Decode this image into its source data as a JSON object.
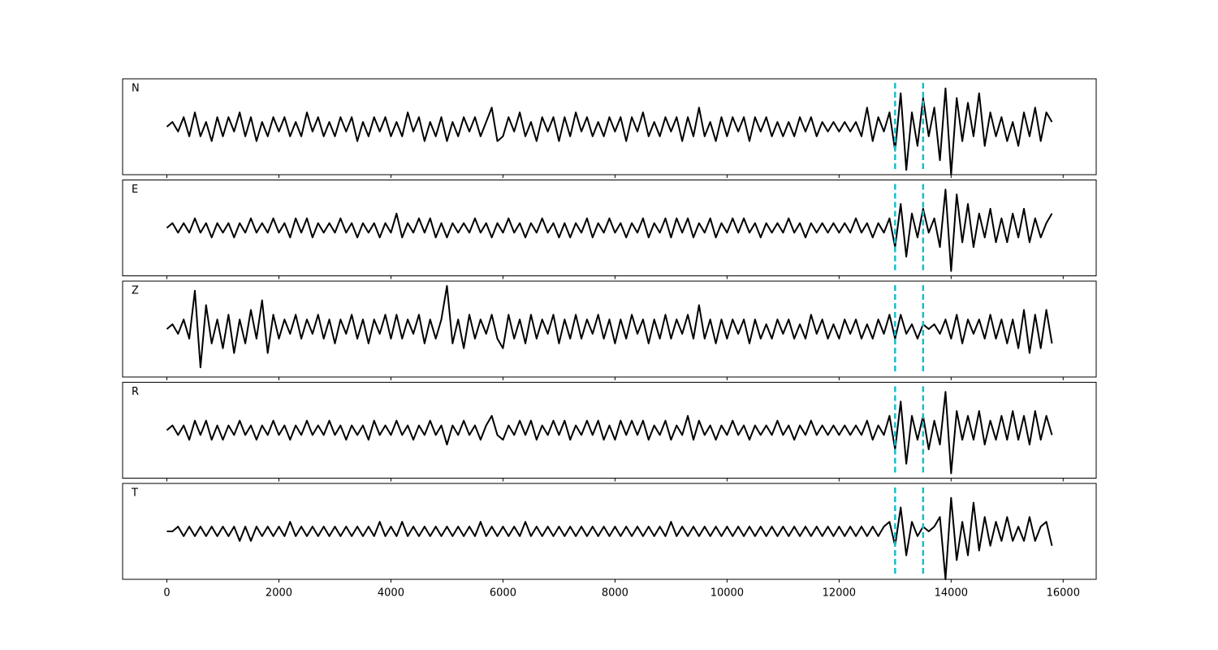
{
  "chart_data": {
    "type": "line",
    "x": [
      0,
      100,
      200,
      300,
      400,
      500,
      600,
      700,
      800,
      900,
      1000,
      1100,
      1200,
      1300,
      1400,
      1500,
      1600,
      1700,
      1800,
      1900,
      2000,
      2100,
      2200,
      2300,
      2400,
      2500,
      2600,
      2700,
      2800,
      2900,
      3000,
      3100,
      3200,
      3300,
      3400,
      3500,
      3600,
      3700,
      3800,
      3900,
      4000,
      4100,
      4200,
      4300,
      4400,
      4500,
      4600,
      4700,
      4800,
      4900,
      5000,
      5100,
      5200,
      5300,
      5400,
      5500,
      5600,
      5700,
      5800,
      5900,
      6000,
      6100,
      6200,
      6300,
      6400,
      6500,
      6600,
      6700,
      6800,
      6900,
      7000,
      7100,
      7200,
      7300,
      7400,
      7500,
      7600,
      7700,
      7800,
      7900,
      8000,
      8100,
      8200,
      8300,
      8400,
      8500,
      8600,
      8700,
      8800,
      8900,
      9000,
      9100,
      9200,
      9300,
      9400,
      9500,
      9600,
      9700,
      9800,
      9900,
      10000,
      10100,
      10200,
      10300,
      10400,
      10500,
      10600,
      10700,
      10800,
      10900,
      11000,
      11100,
      11200,
      11300,
      11400,
      11500,
      11600,
      11700,
      11800,
      11900,
      12000,
      12100,
      12200,
      12300,
      12400,
      12500,
      12600,
      12700,
      12800,
      12900,
      13000,
      13100,
      13200,
      13300,
      13400,
      13500,
      13600,
      13700,
      13800,
      13900,
      14000,
      14100,
      14200,
      14300,
      14400,
      14500,
      14600,
      14700,
      14800,
      14900,
      15000,
      15100,
      15200,
      15300,
      15400,
      15500,
      15600,
      15700,
      15800
    ],
    "series": [
      {
        "name": "N",
        "color": "#000000",
        "values": [
          0,
          1,
          -1,
          2,
          -2,
          3,
          -2,
          1,
          -3,
          2,
          -2,
          2,
          -1,
          3,
          -2,
          2,
          -3,
          1,
          -2,
          2,
          -1,
          2,
          -2,
          1,
          -2,
          3,
          -1,
          2,
          -2,
          1,
          -2,
          2,
          -1,
          2,
          -3,
          1,
          -2,
          2,
          -1,
          2,
          -2,
          1,
          -2,
          3,
          -1,
          2,
          -3,
          1,
          -2,
          2,
          -3,
          1,
          -2,
          2,
          -1,
          2,
          -2,
          1,
          4,
          -3,
          -2,
          2,
          -1,
          3,
          -2,
          1,
          -3,
          2,
          -1,
          2,
          -3,
          2,
          -2,
          3,
          -1,
          2,
          -2,
          1,
          -2,
          2,
          -1,
          2,
          -3,
          2,
          -1,
          3,
          -2,
          1,
          -2,
          2,
          -1,
          2,
          -3,
          2,
          -2,
          4,
          -2,
          1,
          -3,
          2,
          -2,
          2,
          -1,
          2,
          -3,
          2,
          -1,
          2,
          -2,
          1,
          -2,
          1,
          -2,
          2,
          -1,
          2,
          -2,
          1,
          -1,
          1,
          -1,
          1,
          -1,
          1,
          -2,
          4,
          -3,
          2,
          -1,
          3,
          -5,
          7,
          -9,
          3,
          -4,
          6,
          -2,
          4,
          -7,
          8,
          -10,
          6,
          -3,
          5,
          -2,
          7,
          -4,
          3,
          -2,
          2,
          -3,
          1,
          -4,
          3,
          -2,
          4,
          -3,
          3,
          1
        ]
      },
      {
        "name": "E",
        "color": "#000000",
        "values": [
          0,
          1,
          -1,
          1,
          -1,
          2,
          -1,
          1,
          -2,
          1,
          -1,
          1,
          -2,
          1,
          -1,
          2,
          -1,
          1,
          -1,
          2,
          -1,
          1,
          -2,
          2,
          -1,
          2,
          -2,
          1,
          -1,
          1,
          -1,
          2,
          -1,
          1,
          -2,
          1,
          -1,
          1,
          -2,
          1,
          -1,
          3,
          -2,
          1,
          -1,
          2,
          -1,
          2,
          -2,
          1,
          -2,
          1,
          -1,
          1,
          -1,
          2,
          -1,
          1,
          -2,
          1,
          -1,
          2,
          -1,
          1,
          -2,
          1,
          -1,
          2,
          -1,
          1,
          -2,
          1,
          -2,
          1,
          -1,
          2,
          -2,
          1,
          -1,
          2,
          -1,
          1,
          -2,
          1,
          -1,
          2,
          -2,
          1,
          -1,
          2,
          -2,
          2,
          -1,
          2,
          -2,
          1,
          -1,
          2,
          -2,
          1,
          -1,
          2,
          -1,
          2,
          -1,
          1,
          -2,
          1,
          -1,
          1,
          -1,
          2,
          -1,
          1,
          -2,
          1,
          -1,
          1,
          -1,
          1,
          -1,
          1,
          -1,
          2,
          -1,
          1,
          -2,
          1,
          -1,
          2,
          -4,
          5,
          -6,
          3,
          -2,
          4,
          -1,
          2,
          -4,
          8,
          -9,
          7,
          -3,
          5,
          -4,
          3,
          -2,
          4,
          -3,
          2,
          -3,
          3,
          -2,
          4,
          -3,
          2,
          -2,
          1,
          3
        ]
      },
      {
        "name": "Z",
        "color": "#000000",
        "values": [
          0,
          1,
          -1,
          2,
          -2,
          8,
          -8,
          5,
          -3,
          2,
          -4,
          3,
          -5,
          2,
          -3,
          4,
          -2,
          6,
          -5,
          3,
          -2,
          2,
          -1,
          3,
          -2,
          2,
          -1,
          3,
          -2,
          2,
          -3,
          2,
          -1,
          3,
          -2,
          2,
          -3,
          2,
          -1,
          3,
          -2,
          3,
          -2,
          2,
          -1,
          3,
          -3,
          2,
          -2,
          2,
          9,
          -3,
          2,
          -4,
          3,
          -2,
          2,
          -1,
          3,
          -2,
          -4,
          3,
          -2,
          2,
          -3,
          3,
          -2,
          2,
          -1,
          3,
          -3,
          2,
          -2,
          3,
          -2,
          2,
          -1,
          3,
          -2,
          2,
          -3,
          2,
          -2,
          3,
          -1,
          2,
          -3,
          2,
          -2,
          3,
          -2,
          2,
          -1,
          3,
          -2,
          5,
          -2,
          2,
          -3,
          2,
          -2,
          2,
          -1,
          2,
          -3,
          2,
          -2,
          1,
          -2,
          2,
          -1,
          2,
          -2,
          1,
          -2,
          3,
          -1,
          2,
          -2,
          1,
          -2,
          2,
          -1,
          2,
          -2,
          1,
          -2,
          2,
          -1,
          3,
          -2,
          3,
          -1,
          1,
          -2,
          1,
          0,
          1,
          -1,
          2,
          -2,
          3,
          -3,
          2,
          -1,
          2,
          -2,
          3,
          -2,
          2,
          -3,
          2,
          -4,
          4,
          -5,
          3,
          -4,
          4,
          -3
        ]
      },
      {
        "name": "R",
        "color": "#000000",
        "values": [
          0,
          1,
          -1,
          1,
          -2,
          2,
          -1,
          2,
          -2,
          1,
          -2,
          1,
          -1,
          2,
          -1,
          1,
          -2,
          1,
          -1,
          2,
          -1,
          1,
          -2,
          1,
          -1,
          2,
          -1,
          1,
          -1,
          2,
          -1,
          1,
          -2,
          1,
          -1,
          1,
          -2,
          2,
          -1,
          1,
          -1,
          2,
          -1,
          1,
          -2,
          1,
          -1,
          2,
          -1,
          1,
          -3,
          1,
          -1,
          2,
          -1,
          1,
          -2,
          1,
          3,
          -1,
          -2,
          1,
          -1,
          2,
          -1,
          2,
          -2,
          1,
          -1,
          2,
          -1,
          2,
          -2,
          1,
          -1,
          2,
          -1,
          2,
          -2,
          1,
          -2,
          2,
          -1,
          2,
          -1,
          2,
          -2,
          1,
          -1,
          2,
          -2,
          1,
          -1,
          3,
          -2,
          2,
          -1,
          1,
          -2,
          1,
          -1,
          2,
          -1,
          1,
          -2,
          1,
          -1,
          1,
          -1,
          2,
          -1,
          1,
          -2,
          1,
          -1,
          2,
          -1,
          1,
          -1,
          1,
          -1,
          1,
          -1,
          1,
          -1,
          2,
          -2,
          1,
          -1,
          3,
          -4,
          6,
          -7,
          3,
          -2,
          3,
          -4,
          2,
          -3,
          8,
          -9,
          4,
          -2,
          3,
          -2,
          4,
          -3,
          2,
          -2,
          3,
          -2,
          4,
          -2,
          3,
          -3,
          4,
          -2,
          3,
          -1
        ]
      },
      {
        "name": "T",
        "color": "#000000",
        "values": [
          0,
          0,
          1,
          -1,
          1,
          -1,
          1,
          -1,
          1,
          -1,
          1,
          -1,
          1,
          -2,
          1,
          -2,
          1,
          -1,
          1,
          -1,
          1,
          -1,
          2,
          -1,
          1,
          -1,
          1,
          -1,
          1,
          -1,
          1,
          -1,
          1,
          -1,
          1,
          -1,
          1,
          -1,
          2,
          -1,
          1,
          -1,
          2,
          -1,
          1,
          -1,
          1,
          -1,
          1,
          -1,
          1,
          -1,
          1,
          -1,
          1,
          -1,
          2,
          -1,
          1,
          -1,
          1,
          -1,
          1,
          -1,
          2,
          -1,
          1,
          -1,
          1,
          -1,
          1,
          -1,
          1,
          -1,
          1,
          -1,
          1,
          -1,
          1,
          -1,
          1,
          -1,
          1,
          -1,
          1,
          -1,
          1,
          -1,
          1,
          -1,
          2,
          -1,
          1,
          -1,
          1,
          -1,
          1,
          -1,
          1,
          -1,
          1,
          -1,
          1,
          -1,
          1,
          -1,
          1,
          -1,
          1,
          -1,
          1,
          -1,
          1,
          -1,
          1,
          -1,
          1,
          -1,
          1,
          -1,
          1,
          -1,
          1,
          -1,
          1,
          -1,
          1,
          -1,
          1,
          2,
          -3,
          5,
          -5,
          2,
          -1,
          1,
          0,
          1,
          3,
          -10,
          7,
          -6,
          2,
          -5,
          6,
          -4,
          3,
          -3,
          2,
          -2,
          3,
          -2,
          1,
          -2,
          3,
          -2,
          1,
          2,
          -3
        ]
      }
    ],
    "markers": {
      "x": [
        13000,
        13500
      ],
      "color": "#17becf"
    },
    "xlim": [
      -790,
      16590
    ],
    "xticks": [
      0,
      2000,
      4000,
      6000,
      8000,
      10000,
      12000,
      14000,
      16000
    ],
    "ylim": [
      -10,
      10
    ]
  }
}
